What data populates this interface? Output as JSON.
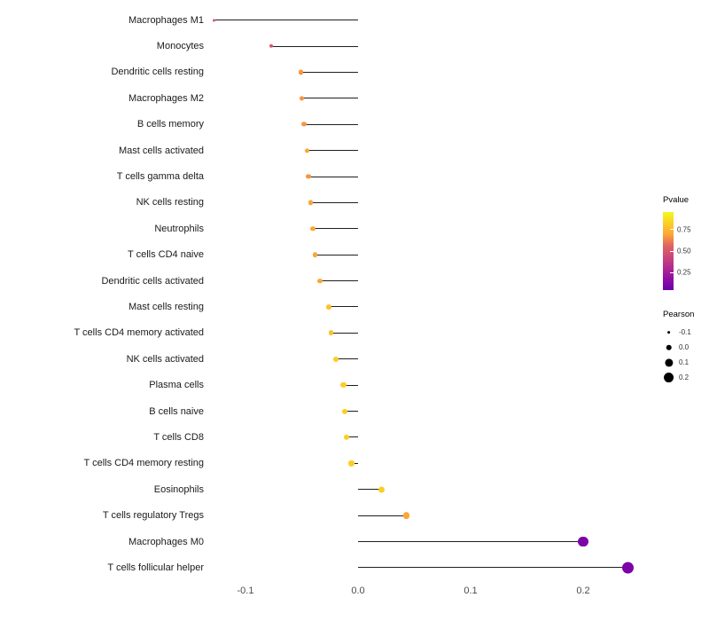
{
  "chart_data": {
    "type": "lollipop",
    "title": "",
    "xlabel": "",
    "ylabel": "",
    "grid": false,
    "legend_position": "right",
    "xlim": [
      -0.13,
      0.27
    ],
    "x_ticks": [
      {
        "label": "-0.1",
        "value": -0.1
      },
      {
        "label": "0.0",
        "value": 0.0
      },
      {
        "label": "0.1",
        "value": 0.1
      },
      {
        "label": "0.2",
        "value": 0.2
      }
    ],
    "legends": {
      "pvalue": {
        "title": "Pvalue",
        "ticks": [
          {
            "label": "0.75",
            "value": 0.75
          },
          {
            "label": "0.50",
            "value": 0.5
          },
          {
            "label": "0.25",
            "value": 0.25
          }
        ],
        "scale_top_value": 0.95,
        "scale_bottom_value": 0.05,
        "gradient_top_to_bottom": [
          "#f0f921",
          "#fcce25",
          "#fca636",
          "#e16462",
          "#cc4778",
          "#b12a90",
          "#8f0da4",
          "#6a00a8"
        ]
      },
      "pearson": {
        "title": "Pearson",
        "dot_color": "#000000",
        "sizes": [
          {
            "label": "-0.1",
            "value": -0.1
          },
          {
            "label": "0.0",
            "value": 0.0
          },
          {
            "label": "0.1",
            "value": 0.1
          },
          {
            "label": "0.2",
            "value": 0.2
          }
        ]
      }
    },
    "points": [
      {
        "label": "Macrophages M1",
        "pearson": -0.128,
        "pvalue": 0.55,
        "color": "#d8576b"
      },
      {
        "label": "Monocytes",
        "pearson": -0.077,
        "pvalue": 0.52,
        "color": "#d8576b"
      },
      {
        "label": "Dendritic cells resting",
        "pearson": -0.051,
        "pvalue": 0.78,
        "color": "#f89540"
      },
      {
        "label": "Macrophages M2",
        "pearson": -0.05,
        "pvalue": 0.78,
        "color": "#f89540"
      },
      {
        "label": "B cells memory",
        "pearson": -0.048,
        "pvalue": 0.78,
        "color": "#f89540"
      },
      {
        "label": "Mast cells activated",
        "pearson": -0.045,
        "pvalue": 0.8,
        "color": "#fca636"
      },
      {
        "label": "T cells gamma delta",
        "pearson": -0.044,
        "pvalue": 0.78,
        "color": "#f89540"
      },
      {
        "label": "NK cells resting",
        "pearson": -0.042,
        "pvalue": 0.8,
        "color": "#fca636"
      },
      {
        "label": "Neutrophils",
        "pearson": -0.04,
        "pvalue": 0.8,
        "color": "#fca636"
      },
      {
        "label": "T cells CD4 naive",
        "pearson": -0.038,
        "pvalue": 0.8,
        "color": "#fca636"
      },
      {
        "label": "Dendritic cells activated",
        "pearson": -0.034,
        "pvalue": 0.82,
        "color": "#fca636"
      },
      {
        "label": "Mast cells resting",
        "pearson": -0.026,
        "pvalue": 0.85,
        "color": "#fcc228"
      },
      {
        "label": "T cells CD4 memory activated",
        "pearson": -0.024,
        "pvalue": 0.85,
        "color": "#fcc228"
      },
      {
        "label": "NK cells activated",
        "pearson": -0.02,
        "pvalue": 0.88,
        "color": "#fcce25"
      },
      {
        "label": "Plasma cells",
        "pearson": -0.013,
        "pvalue": 0.88,
        "color": "#fcce25"
      },
      {
        "label": "B cells naive",
        "pearson": -0.012,
        "pvalue": 0.88,
        "color": "#fcce25"
      },
      {
        "label": "T cells CD8",
        "pearson": -0.01,
        "pvalue": 0.88,
        "color": "#fcce25"
      },
      {
        "label": "T cells CD4 memory resting",
        "pearson": -0.006,
        "pvalue": 0.9,
        "color": "#fcce25"
      },
      {
        "label": "Eosinophils",
        "pearson": 0.021,
        "pvalue": 0.88,
        "color": "#fcce25"
      },
      {
        "label": "T cells regulatory  Tregs",
        "pearson": 0.043,
        "pvalue": 0.8,
        "color": "#fca636"
      },
      {
        "label": "Macrophages M0",
        "pearson": 0.2,
        "pvalue": 0.12,
        "color": "#7d03a8"
      },
      {
        "label": "T cells follicular helper",
        "pearson": 0.24,
        "pvalue": 0.1,
        "color": "#7d03a8"
      }
    ]
  }
}
